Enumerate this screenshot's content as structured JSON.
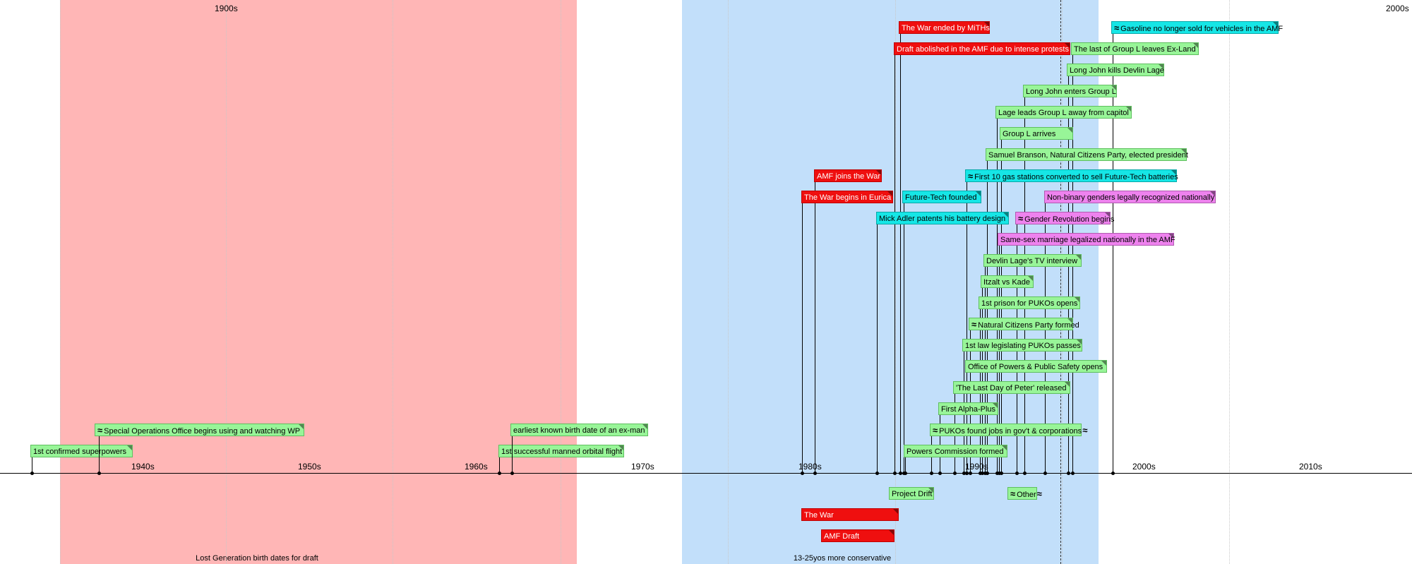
{
  "bands": [
    {
      "label": "Lost Generation birth dates for draft",
      "color": "#ffb6b6"
    },
    {
      "label": "13-25yos more conservative",
      "color": "#c2dffa"
    }
  ],
  "top_labels": [
    "1900s",
    "2000s"
  ],
  "decades": [
    "1940s",
    "1950s",
    "1960s",
    "1970s",
    "1980s",
    "1990s",
    "2000s",
    "2010s"
  ],
  "events": [
    {
      "text": "1st confirmed superpowers",
      "color": "green"
    },
    {
      "text": "Special Operations Office begins using and watching WP",
      "color": "green",
      "glyph": "≈"
    },
    {
      "text": "1st successful manned orbital flight",
      "color": "green"
    },
    {
      "text": "earliest known birth date of an ex-man",
      "color": "green"
    },
    {
      "text": "The War ended by MiTHs",
      "color": "red"
    },
    {
      "text": "Draft abolished in the AMF due to intense protests",
      "color": "red"
    },
    {
      "text": "Gasoline no longer sold for vehicles in the AMF",
      "color": "cyan",
      "glyph": "≈"
    },
    {
      "text": "The last of Group L leaves Ex-Land",
      "color": "green"
    },
    {
      "text": "Long John kills Devlin Lage",
      "color": "green"
    },
    {
      "text": "Long John enters Group L",
      "color": "green"
    },
    {
      "text": "Lage leads Group L away from capitol",
      "color": "green"
    },
    {
      "text": "Group L arrives",
      "color": "green"
    },
    {
      "text": "Samuel Branson, Natural Citizens Party, elected president",
      "color": "green"
    },
    {
      "text": "AMF joins the War",
      "color": "red"
    },
    {
      "text": "First 10 gas stations converted to sell Future-Tech batteries",
      "color": "cyan",
      "glyph": "≈"
    },
    {
      "text": "The War begins in Eurica",
      "color": "red"
    },
    {
      "text": "Future-Tech founded",
      "color": "cyan"
    },
    {
      "text": "Non-binary genders legally recognized nationally",
      "color": "pink"
    },
    {
      "text": "Mick Adler patents his battery design",
      "color": "cyan"
    },
    {
      "text": "Gender Revolution begins",
      "color": "pink",
      "glyph": "≈"
    },
    {
      "text": "Same-sex marriage legalized nationally in the AMF",
      "color": "pink"
    },
    {
      "text": "Devlin Lage's TV interview",
      "color": "green"
    },
    {
      "text": "Itzalt vs Kade",
      "color": "green"
    },
    {
      "text": "1st prison for PUKOs opens",
      "color": "green"
    },
    {
      "text": "Natural Citizens Party formed",
      "color": "green",
      "glyph": "≈"
    },
    {
      "text": "1st law legislating PUKOs passes",
      "color": "green"
    },
    {
      "text": "Office of Powers & Public Safety opens",
      "color": "green"
    },
    {
      "text": "'The Last Day of Peter' released",
      "color": "green"
    },
    {
      "text": "First Alpha-Plus",
      "color": "green"
    },
    {
      "text": "PUKOs found jobs in gov't & corporations",
      "color": "green",
      "glyph": "≈",
      "glyph_end": "≈"
    },
    {
      "text": "Powers Commission formed",
      "color": "green"
    }
  ],
  "durations": [
    {
      "text": "Project Drift",
      "color": "green"
    },
    {
      "text": "Other",
      "color": "green",
      "glyph": "≈",
      "glyph_end": "≈"
    },
    {
      "text": "The War",
      "color": "red"
    },
    {
      "text": "AMF Draft",
      "color": "red"
    }
  ],
  "colors": {
    "green": "#98f598",
    "red": "#ef0f0f",
    "cyan": "#16e6e6",
    "pink": "#ee82ee"
  }
}
